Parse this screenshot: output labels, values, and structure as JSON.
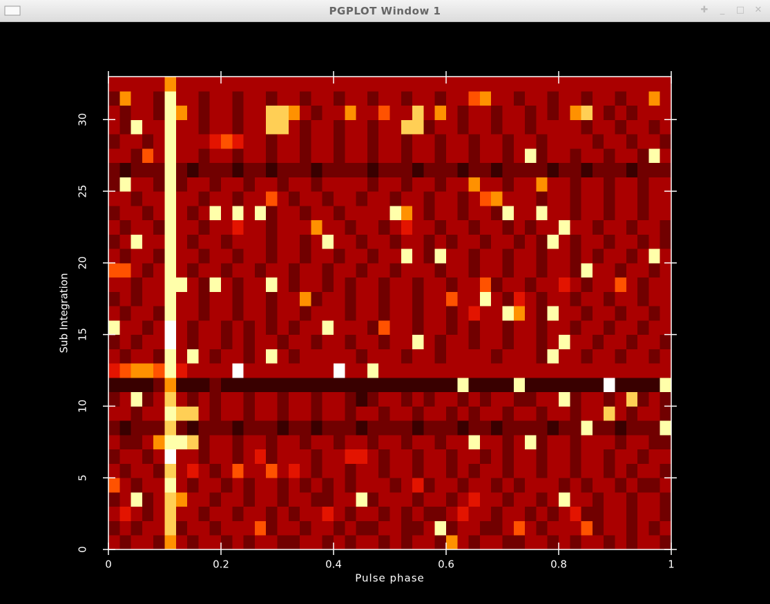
{
  "window_title": "PGPLOT Window 1",
  "chart_data": {
    "type": "heatmap",
    "xlabel": "Pulse phase",
    "ylabel": "Sub Integration",
    "xlim": [
      0,
      1
    ],
    "xticks": [
      0,
      0.2,
      0.4,
      0.6,
      0.8,
      1
    ],
    "ylim": [
      0,
      33
    ],
    "yticks": [
      0,
      5,
      10,
      15,
      20,
      25,
      30
    ],
    "colormap": "heat",
    "z": [
      [
        3,
        2,
        3,
        3,
        2,
        6,
        3,
        2,
        3,
        3,
        2,
        3,
        2,
        3,
        3,
        2,
        2,
        3,
        3,
        2,
        3,
        2,
        3,
        3,
        2,
        3,
        2,
        3,
        3,
        2,
        6,
        3,
        2,
        3,
        3,
        2,
        2,
        3,
        3,
        2,
        3,
        2,
        3,
        3,
        2,
        3,
        2,
        3,
        3,
        2
      ],
      [
        2,
        3,
        2,
        3,
        3,
        7,
        2,
        3,
        3,
        2,
        3,
        3,
        3,
        5,
        2,
        3,
        3,
        2,
        3,
        3,
        2,
        3,
        2,
        2,
        3,
        3,
        2,
        2,
        3,
        8,
        2,
        3,
        3,
        2,
        2,
        3,
        5,
        3,
        2,
        3,
        3,
        3,
        5,
        2,
        3,
        3,
        2,
        3,
        2,
        3
      ],
      [
        3,
        4,
        3,
        2,
        3,
        7,
        3,
        3,
        2,
        3,
        3,
        2,
        3,
        3,
        2,
        3,
        2,
        3,
        3,
        4,
        3,
        2,
        3,
        3,
        2,
        3,
        2,
        3,
        2,
        2,
        3,
        4,
        3,
        3,
        2,
        3,
        3,
        2,
        3,
        2,
        3,
        4,
        2,
        2,
        3,
        3,
        2,
        3,
        3,
        2
      ],
      [
        2,
        3,
        8,
        2,
        3,
        7,
        6,
        3,
        3,
        2,
        3,
        3,
        2,
        3,
        3,
        2,
        3,
        3,
        2,
        2,
        3,
        3,
        8,
        2,
        3,
        3,
        3,
        2,
        3,
        3,
        2,
        3,
        4,
        3,
        3,
        2,
        3,
        3,
        2,
        3,
        8,
        3,
        3,
        2,
        3,
        3,
        2,
        3,
        3,
        2
      ],
      [
        5,
        3,
        2,
        3,
        3,
        8,
        3,
        2,
        3,
        3,
        2,
        3,
        2,
        3,
        3,
        2,
        3,
        2,
        3,
        2,
        3,
        2,
        3,
        3,
        3,
        2,
        3,
        4,
        2,
        3,
        3,
        2,
        3,
        3,
        2,
        3,
        2,
        3,
        3,
        3,
        2,
        3,
        2,
        3,
        3,
        2,
        3,
        2,
        2,
        3
      ],
      [
        3,
        2,
        3,
        3,
        2,
        7,
        3,
        4,
        3,
        2,
        3,
        5,
        3,
        3,
        5,
        3,
        4,
        3,
        2,
        3,
        3,
        2,
        3,
        3,
        2,
        3,
        3,
        2,
        3,
        3,
        2,
        3,
        2,
        3,
        3,
        2,
        3,
        3,
        2,
        3,
        3,
        2,
        3,
        3,
        2,
        3,
        2,
        3,
        3,
        2
      ],
      [
        2,
        3,
        3,
        2,
        3,
        9,
        3,
        3,
        2,
        3,
        3,
        2,
        3,
        4,
        2,
        3,
        3,
        3,
        2,
        3,
        3,
        4,
        4,
        3,
        2,
        3,
        3,
        2,
        3,
        3,
        2,
        3,
        3,
        2,
        3,
        2,
        3,
        3,
        2,
        3,
        3,
        2,
        3,
        3,
        2,
        3,
        3,
        2,
        3,
        3
      ],
      [
        3,
        2,
        2,
        3,
        6,
        8,
        8,
        7,
        2,
        3,
        3,
        2,
        3,
        3,
        2,
        3,
        3,
        2,
        3,
        3,
        2,
        3,
        3,
        2,
        3,
        3,
        2,
        3,
        3,
        2,
        3,
        3,
        8,
        3,
        3,
        2,
        3,
        8,
        2,
        3,
        3,
        2,
        3,
        3,
        3,
        2,
        3,
        3,
        2,
        2
      ],
      [
        2,
        1,
        2,
        2,
        2,
        7,
        2,
        1,
        2,
        2,
        2,
        1,
        2,
        2,
        2,
        1,
        2,
        2,
        1,
        2,
        2,
        2,
        1,
        2,
        2,
        2,
        2,
        1,
        2,
        2,
        2,
        1,
        2,
        2,
        1,
        2,
        2,
        2,
        2,
        1,
        2,
        2,
        8,
        2,
        2,
        1,
        2,
        2,
        2,
        8
      ],
      [
        3,
        3,
        2,
        3,
        3,
        8,
        7,
        7,
        3,
        2,
        3,
        3,
        2,
        3,
        3,
        2,
        3,
        3,
        2,
        3,
        3,
        2,
        3,
        3,
        2,
        3,
        3,
        2,
        3,
        3,
        2,
        3,
        2,
        3,
        3,
        2,
        3,
        3,
        2,
        3,
        3,
        2,
        3,
        3,
        7,
        3,
        2,
        3,
        3,
        2
      ],
      [
        2,
        3,
        8,
        2,
        3,
        7,
        3,
        2,
        3,
        2,
        3,
        3,
        2,
        3,
        3,
        2,
        3,
        3,
        2,
        3,
        3,
        2,
        1,
        2,
        3,
        3,
        2,
        3,
        2,
        3,
        3,
        2,
        3,
        2,
        3,
        3,
        2,
        2,
        3,
        3,
        8,
        2,
        3,
        3,
        2,
        3,
        7,
        2,
        3,
        2
      ],
      [
        1,
        1,
        1,
        1,
        2,
        6,
        1,
        1,
        1,
        2,
        1,
        1,
        1,
        1,
        1,
        1,
        1,
        1,
        1,
        1,
        1,
        1,
        1,
        1,
        1,
        1,
        1,
        1,
        1,
        1,
        1,
        8,
        1,
        1,
        1,
        1,
        8,
        1,
        1,
        1,
        1,
        1,
        1,
        1,
        9,
        1,
        1,
        1,
        1,
        8
      ],
      [
        4,
        5,
        6,
        6,
        5,
        8,
        4,
        3,
        3,
        3,
        3,
        9,
        3,
        3,
        3,
        3,
        3,
        3,
        3,
        3,
        9,
        3,
        3,
        8,
        3,
        3,
        3,
        3,
        3,
        3,
        3,
        3,
        3,
        3,
        3,
        3,
        3,
        3,
        3,
        3,
        3,
        3,
        3,
        3,
        3,
        3,
        3,
        3,
        3,
        3
      ],
      [
        3,
        2,
        3,
        3,
        2,
        8,
        3,
        8,
        3,
        2,
        3,
        3,
        2,
        3,
        8,
        3,
        2,
        3,
        3,
        3,
        3,
        3,
        2,
        3,
        3,
        3,
        2,
        3,
        3,
        2,
        3,
        3,
        3,
        3,
        2,
        3,
        3,
        3,
        2,
        8,
        3,
        3,
        2,
        3,
        3,
        2,
        3,
        3,
        2,
        3
      ],
      [
        2,
        3,
        2,
        3,
        3,
        9,
        3,
        2,
        3,
        3,
        2,
        3,
        2,
        3,
        3,
        2,
        3,
        3,
        2,
        3,
        3,
        2,
        3,
        3,
        2,
        3,
        3,
        8,
        3,
        2,
        3,
        3,
        2,
        3,
        3,
        2,
        3,
        3,
        2,
        3,
        8,
        3,
        3,
        2,
        3,
        3,
        2,
        3,
        3,
        2
      ],
      [
        8,
        3,
        3,
        2,
        3,
        9,
        3,
        2,
        3,
        3,
        2,
        3,
        2,
        3,
        2,
        3,
        2,
        3,
        3,
        8,
        3,
        3,
        3,
        2,
        5,
        3,
        3,
        2,
        3,
        3,
        2,
        3,
        2,
        3,
        3,
        2,
        3,
        3,
        2,
        3,
        3,
        2,
        3,
        3,
        2,
        3,
        3,
        2,
        3,
        3
      ],
      [
        3,
        2,
        3,
        3,
        2,
        8,
        3,
        3,
        2,
        3,
        3,
        2,
        3,
        3,
        2,
        3,
        3,
        2,
        3,
        3,
        3,
        2,
        3,
        3,
        2,
        3,
        3,
        2,
        3,
        3,
        2,
        3,
        4,
        3,
        3,
        8,
        6,
        3,
        2,
        8,
        3,
        3,
        2,
        3,
        3,
        2,
        3,
        3,
        2,
        3
      ],
      [
        2,
        3,
        2,
        3,
        3,
        8,
        3,
        3,
        2,
        3,
        3,
        2,
        3,
        3,
        2,
        3,
        3,
        6,
        2,
        3,
        3,
        2,
        3,
        3,
        2,
        3,
        3,
        2,
        3,
        3,
        5,
        3,
        3,
        8,
        3,
        2,
        4,
        3,
        2,
        3,
        3,
        2,
        3,
        3,
        2,
        3,
        3,
        2,
        3,
        3
      ],
      [
        3,
        3,
        2,
        3,
        3,
        8,
        8,
        3,
        2,
        8,
        3,
        2,
        3,
        3,
        8,
        3,
        2,
        3,
        3,
        2,
        3,
        2,
        3,
        3,
        2,
        3,
        3,
        2,
        3,
        3,
        2,
        3,
        3,
        5,
        2,
        3,
        3,
        2,
        3,
        3,
        4,
        3,
        2,
        3,
        3,
        5,
        3,
        2,
        3,
        3
      ],
      [
        5,
        5,
        3,
        2,
        3,
        8,
        3,
        2,
        3,
        3,
        2,
        3,
        3,
        2,
        3,
        3,
        2,
        3,
        3,
        2,
        3,
        3,
        2,
        3,
        3,
        2,
        3,
        3,
        3,
        2,
        3,
        3,
        2,
        3,
        3,
        2,
        3,
        3,
        2,
        3,
        3,
        2,
        8,
        3,
        3,
        2,
        3,
        3,
        2,
        3
      ],
      [
        3,
        2,
        3,
        3,
        2,
        8,
        3,
        3,
        2,
        3,
        3,
        2,
        3,
        3,
        2,
        3,
        3,
        2,
        3,
        3,
        2,
        3,
        3,
        2,
        3,
        3,
        8,
        3,
        2,
        8,
        3,
        3,
        2,
        3,
        3,
        2,
        3,
        3,
        2,
        3,
        3,
        2,
        3,
        2,
        3,
        3,
        2,
        3,
        8,
        3
      ],
      [
        2,
        3,
        8,
        3,
        3,
        8,
        3,
        2,
        3,
        3,
        2,
        3,
        3,
        3,
        2,
        3,
        3,
        2,
        3,
        8,
        3,
        3,
        2,
        3,
        3,
        2,
        3,
        3,
        2,
        3,
        2,
        3,
        3,
        2,
        3,
        3,
        2,
        3,
        2,
        8,
        3,
        2,
        3,
        3,
        2,
        3,
        3,
        2,
        3,
        2
      ],
      [
        3,
        2,
        3,
        3,
        2,
        8,
        3,
        3,
        2,
        3,
        3,
        4,
        3,
        3,
        2,
        3,
        3,
        3,
        6,
        3,
        3,
        2,
        3,
        3,
        2,
        3,
        4,
        3,
        3,
        2,
        3,
        3,
        2,
        3,
        3,
        2,
        3,
        2,
        3,
        3,
        8,
        3,
        3,
        2,
        3,
        3,
        2,
        3,
        3,
        2
      ],
      [
        2,
        3,
        3,
        2,
        3,
        8,
        3,
        2,
        3,
        8,
        3,
        8,
        3,
        8,
        2,
        3,
        3,
        2,
        3,
        3,
        2,
        3,
        3,
        3,
        3,
        8,
        6,
        3,
        2,
        3,
        3,
        2,
        3,
        3,
        2,
        8,
        3,
        3,
        8,
        3,
        3,
        2,
        3,
        3,
        2,
        3,
        3,
        2,
        3,
        3
      ],
      [
        3,
        3,
        2,
        3,
        3,
        8,
        3,
        3,
        2,
        3,
        3,
        2,
        3,
        3,
        5,
        3,
        2,
        3,
        3,
        2,
        3,
        3,
        2,
        3,
        3,
        2,
        3,
        3,
        2,
        3,
        3,
        2,
        3,
        5,
        6,
        3,
        3,
        3,
        2,
        3,
        3,
        2,
        3,
        3,
        2,
        3,
        3,
        2,
        3,
        3
      ],
      [
        2,
        8,
        3,
        3,
        2,
        8,
        2,
        3,
        3,
        2,
        3,
        3,
        2,
        3,
        3,
        2,
        3,
        3,
        2,
        3,
        3,
        3,
        3,
        2,
        3,
        3,
        2,
        3,
        3,
        2,
        3,
        3,
        6,
        3,
        3,
        2,
        3,
        3,
        6,
        3,
        3,
        2,
        3,
        3,
        2,
        3,
        3,
        2,
        3,
        3
      ],
      [
        2,
        1,
        2,
        2,
        2,
        8,
        2,
        1,
        2,
        2,
        2,
        1,
        2,
        2,
        1,
        2,
        2,
        2,
        1,
        2,
        2,
        2,
        2,
        1,
        2,
        2,
        2,
        1,
        2,
        2,
        2,
        1,
        2,
        2,
        1,
        2,
        2,
        2,
        2,
        1,
        2,
        2,
        1,
        2,
        2,
        2,
        1,
        2,
        2,
        2
      ],
      [
        3,
        3,
        2,
        5,
        3,
        8,
        3,
        3,
        2,
        3,
        3,
        2,
        3,
        3,
        2,
        3,
        3,
        2,
        3,
        3,
        2,
        3,
        3,
        2,
        3,
        3,
        2,
        3,
        3,
        2,
        3,
        3,
        2,
        3,
        3,
        2,
        3,
        8,
        2,
        3,
        3,
        2,
        3,
        3,
        2,
        3,
        3,
        2,
        8,
        3
      ],
      [
        2,
        3,
        3,
        2,
        3,
        8,
        3,
        3,
        3,
        4,
        5,
        4,
        3,
        3,
        2,
        3,
        3,
        2,
        3,
        3,
        2,
        3,
        3,
        2,
        3,
        3,
        2,
        3,
        3,
        2,
        3,
        3,
        2,
        3,
        3,
        2,
        3,
        3,
        2,
        3,
        3,
        3,
        3,
        2,
        3,
        3,
        2,
        3,
        3,
        2
      ],
      [
        3,
        2,
        8,
        3,
        3,
        8,
        3,
        3,
        2,
        3,
        3,
        2,
        3,
        3,
        7,
        7,
        3,
        2,
        3,
        3,
        2,
        3,
        3,
        2,
        3,
        3,
        7,
        7,
        2,
        3,
        3,
        2,
        3,
        3,
        2,
        3,
        3,
        2,
        3,
        3,
        3,
        3,
        2,
        3,
        3,
        2,
        3,
        3,
        2,
        3
      ],
      [
        3,
        2,
        3,
        3,
        2,
        8,
        6,
        3,
        2,
        3,
        3,
        2,
        3,
        3,
        7,
        7,
        6,
        3,
        2,
        3,
        3,
        6,
        3,
        3,
        5,
        3,
        3,
        7,
        3,
        6,
        3,
        2,
        3,
        3,
        2,
        3,
        3,
        2,
        3,
        2,
        3,
        6,
        7,
        3,
        2,
        3,
        2,
        3,
        3,
        3
      ],
      [
        2,
        6,
        3,
        3,
        2,
        8,
        3,
        3,
        2,
        3,
        3,
        2,
        3,
        3,
        2,
        3,
        3,
        2,
        3,
        3,
        2,
        3,
        3,
        2,
        3,
        3,
        2,
        3,
        3,
        2,
        3,
        3,
        5,
        6,
        3,
        3,
        2,
        3,
        3,
        2,
        3,
        3,
        2,
        3,
        3,
        2,
        3,
        3,
        6,
        3
      ],
      [
        3,
        3,
        3,
        3,
        3,
        6,
        3,
        3,
        3,
        3,
        3,
        3,
        3,
        3,
        3,
        3,
        3,
        3,
        3,
        3,
        3,
        3,
        3,
        3,
        3,
        3,
        3,
        3,
        3,
        3,
        3,
        3,
        3,
        3,
        3,
        3,
        3,
        3,
        3,
        3,
        3,
        3,
        3,
        3,
        3,
        3,
        3,
        3,
        3,
        3
      ]
    ]
  }
}
